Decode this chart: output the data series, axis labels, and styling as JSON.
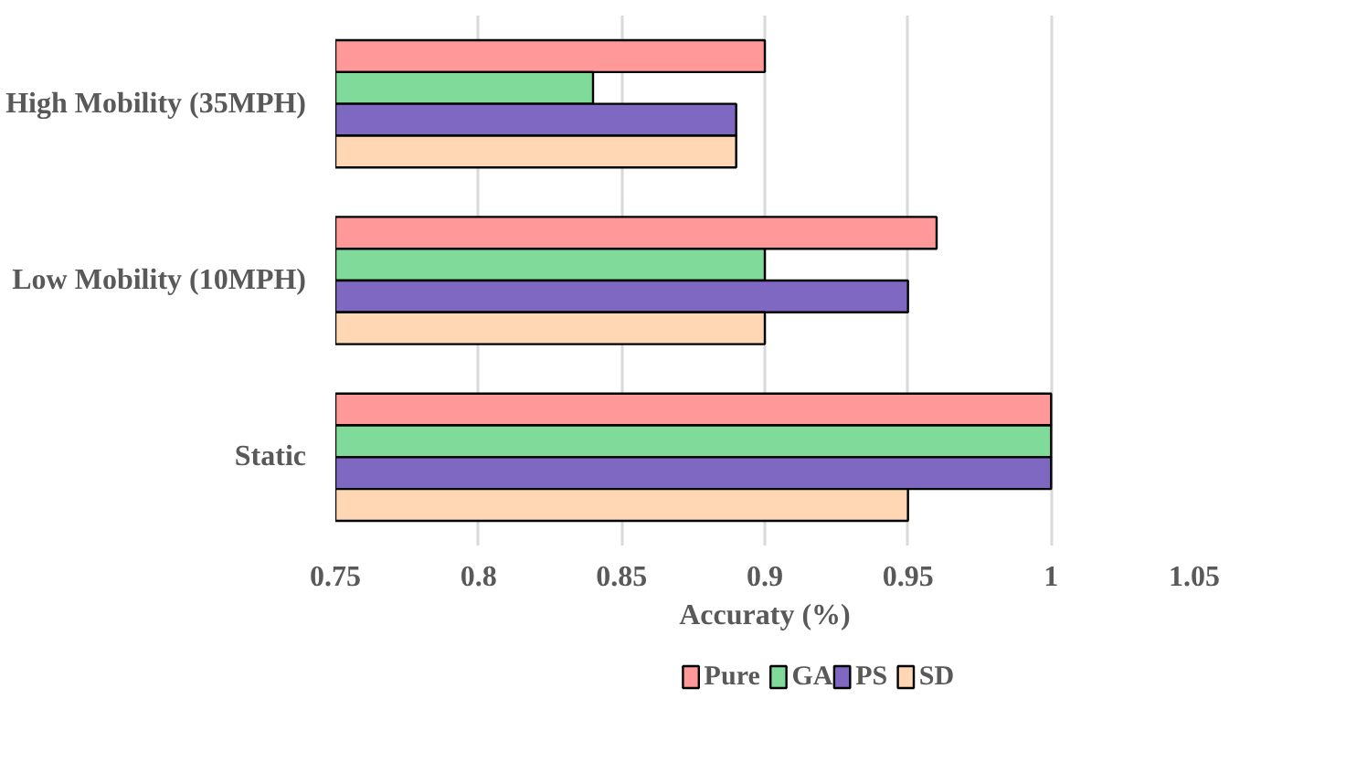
{
  "chart_data": {
    "type": "bar",
    "orientation": "horizontal",
    "xlabel": "Accuraty (%)",
    "categories": [
      "High Mobility (35MPH)",
      "Low Mobility (10MPH)",
      "Static"
    ],
    "series": [
      {
        "name": "Pure",
        "color": "#ff9999",
        "values": [
          0.9,
          0.96,
          1.0
        ]
      },
      {
        "name": "GA",
        "color": "#80da9a",
        "values": [
          0.84,
          0.9,
          1.0
        ]
      },
      {
        "name": "PS",
        "color": "#7f68c2",
        "values": [
          0.89,
          0.95,
          1.0
        ]
      },
      {
        "name": "SD",
        "color": "#ffd7b5",
        "values": [
          0.89,
          0.9,
          0.95
        ]
      }
    ],
    "xlim": [
      0.75,
      1.05
    ],
    "xticks": [
      {
        "value": 0.75,
        "label": "0.75"
      },
      {
        "value": 0.8,
        "label": "0.8"
      },
      {
        "value": 0.85,
        "label": "0.85"
      },
      {
        "value": 0.9,
        "label": "0.9"
      },
      {
        "value": 0.95,
        "label": "0.95"
      },
      {
        "value": 1,
        "label": "1"
      },
      {
        "value": 1.05,
        "label": "1.05"
      }
    ],
    "grid": "x",
    "legend": "bottom"
  }
}
